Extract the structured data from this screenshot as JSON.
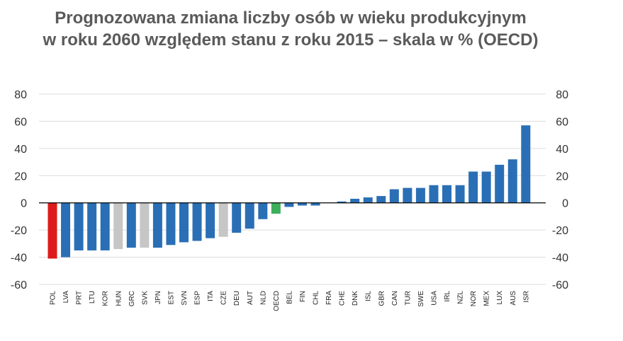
{
  "chart_data": {
    "type": "bar",
    "title_line1": "Prognozowana zmiana liczby osób w wieku produkcyjnym",
    "title_line2": "w roku 2060 względem stanu z roku 2015 – skala w % (OECD)",
    "xlabel": "",
    "ylabel": "",
    "ylim": [
      -60,
      80
    ],
    "yticks": [
      80,
      60,
      40,
      20,
      0,
      -20,
      -40,
      -60
    ],
    "grid": true,
    "categories": [
      "POL",
      "LVA",
      "PRT",
      "LTU",
      "KOR",
      "HUN",
      "GRC",
      "SVK",
      "JPN",
      "EST",
      "SVN",
      "ESP",
      "ITA",
      "CZE",
      "DEU",
      "AUT",
      "NLD",
      "OECD",
      "BEL",
      "FIN",
      "CHL",
      "FRA",
      "CHE",
      "DNK",
      "ISL",
      "GBR",
      "CAN",
      "TUR",
      "SWE",
      "USA",
      "IRL",
      "NZL",
      "NOR",
      "MEX",
      "LUX",
      "AUS",
      "ISR"
    ],
    "values": [
      -41,
      -40,
      -35,
      -35,
      -35,
      -34,
      -33,
      -33,
      -33,
      -31,
      -29,
      -28,
      -26,
      -25,
      -22,
      -19,
      -12,
      -8,
      -3,
      -2,
      -2,
      0,
      1,
      3,
      4,
      5,
      10,
      11,
      11,
      13,
      13,
      13,
      23,
      23,
      28,
      32,
      57
    ],
    "colors": {
      "default": "#2a6fb5",
      "highlight": "#dd1b1b",
      "average": "#3cae5c",
      "muted": "#c6c6c6"
    },
    "bar_color_keys": [
      "highlight",
      "default",
      "default",
      "default",
      "default",
      "muted",
      "default",
      "muted",
      "default",
      "default",
      "default",
      "default",
      "default",
      "muted",
      "default",
      "default",
      "default",
      "average",
      "default",
      "default",
      "default",
      "default",
      "default",
      "default",
      "default",
      "default",
      "default",
      "default",
      "default",
      "default",
      "default",
      "default",
      "default",
      "default",
      "default",
      "default",
      "default"
    ]
  }
}
